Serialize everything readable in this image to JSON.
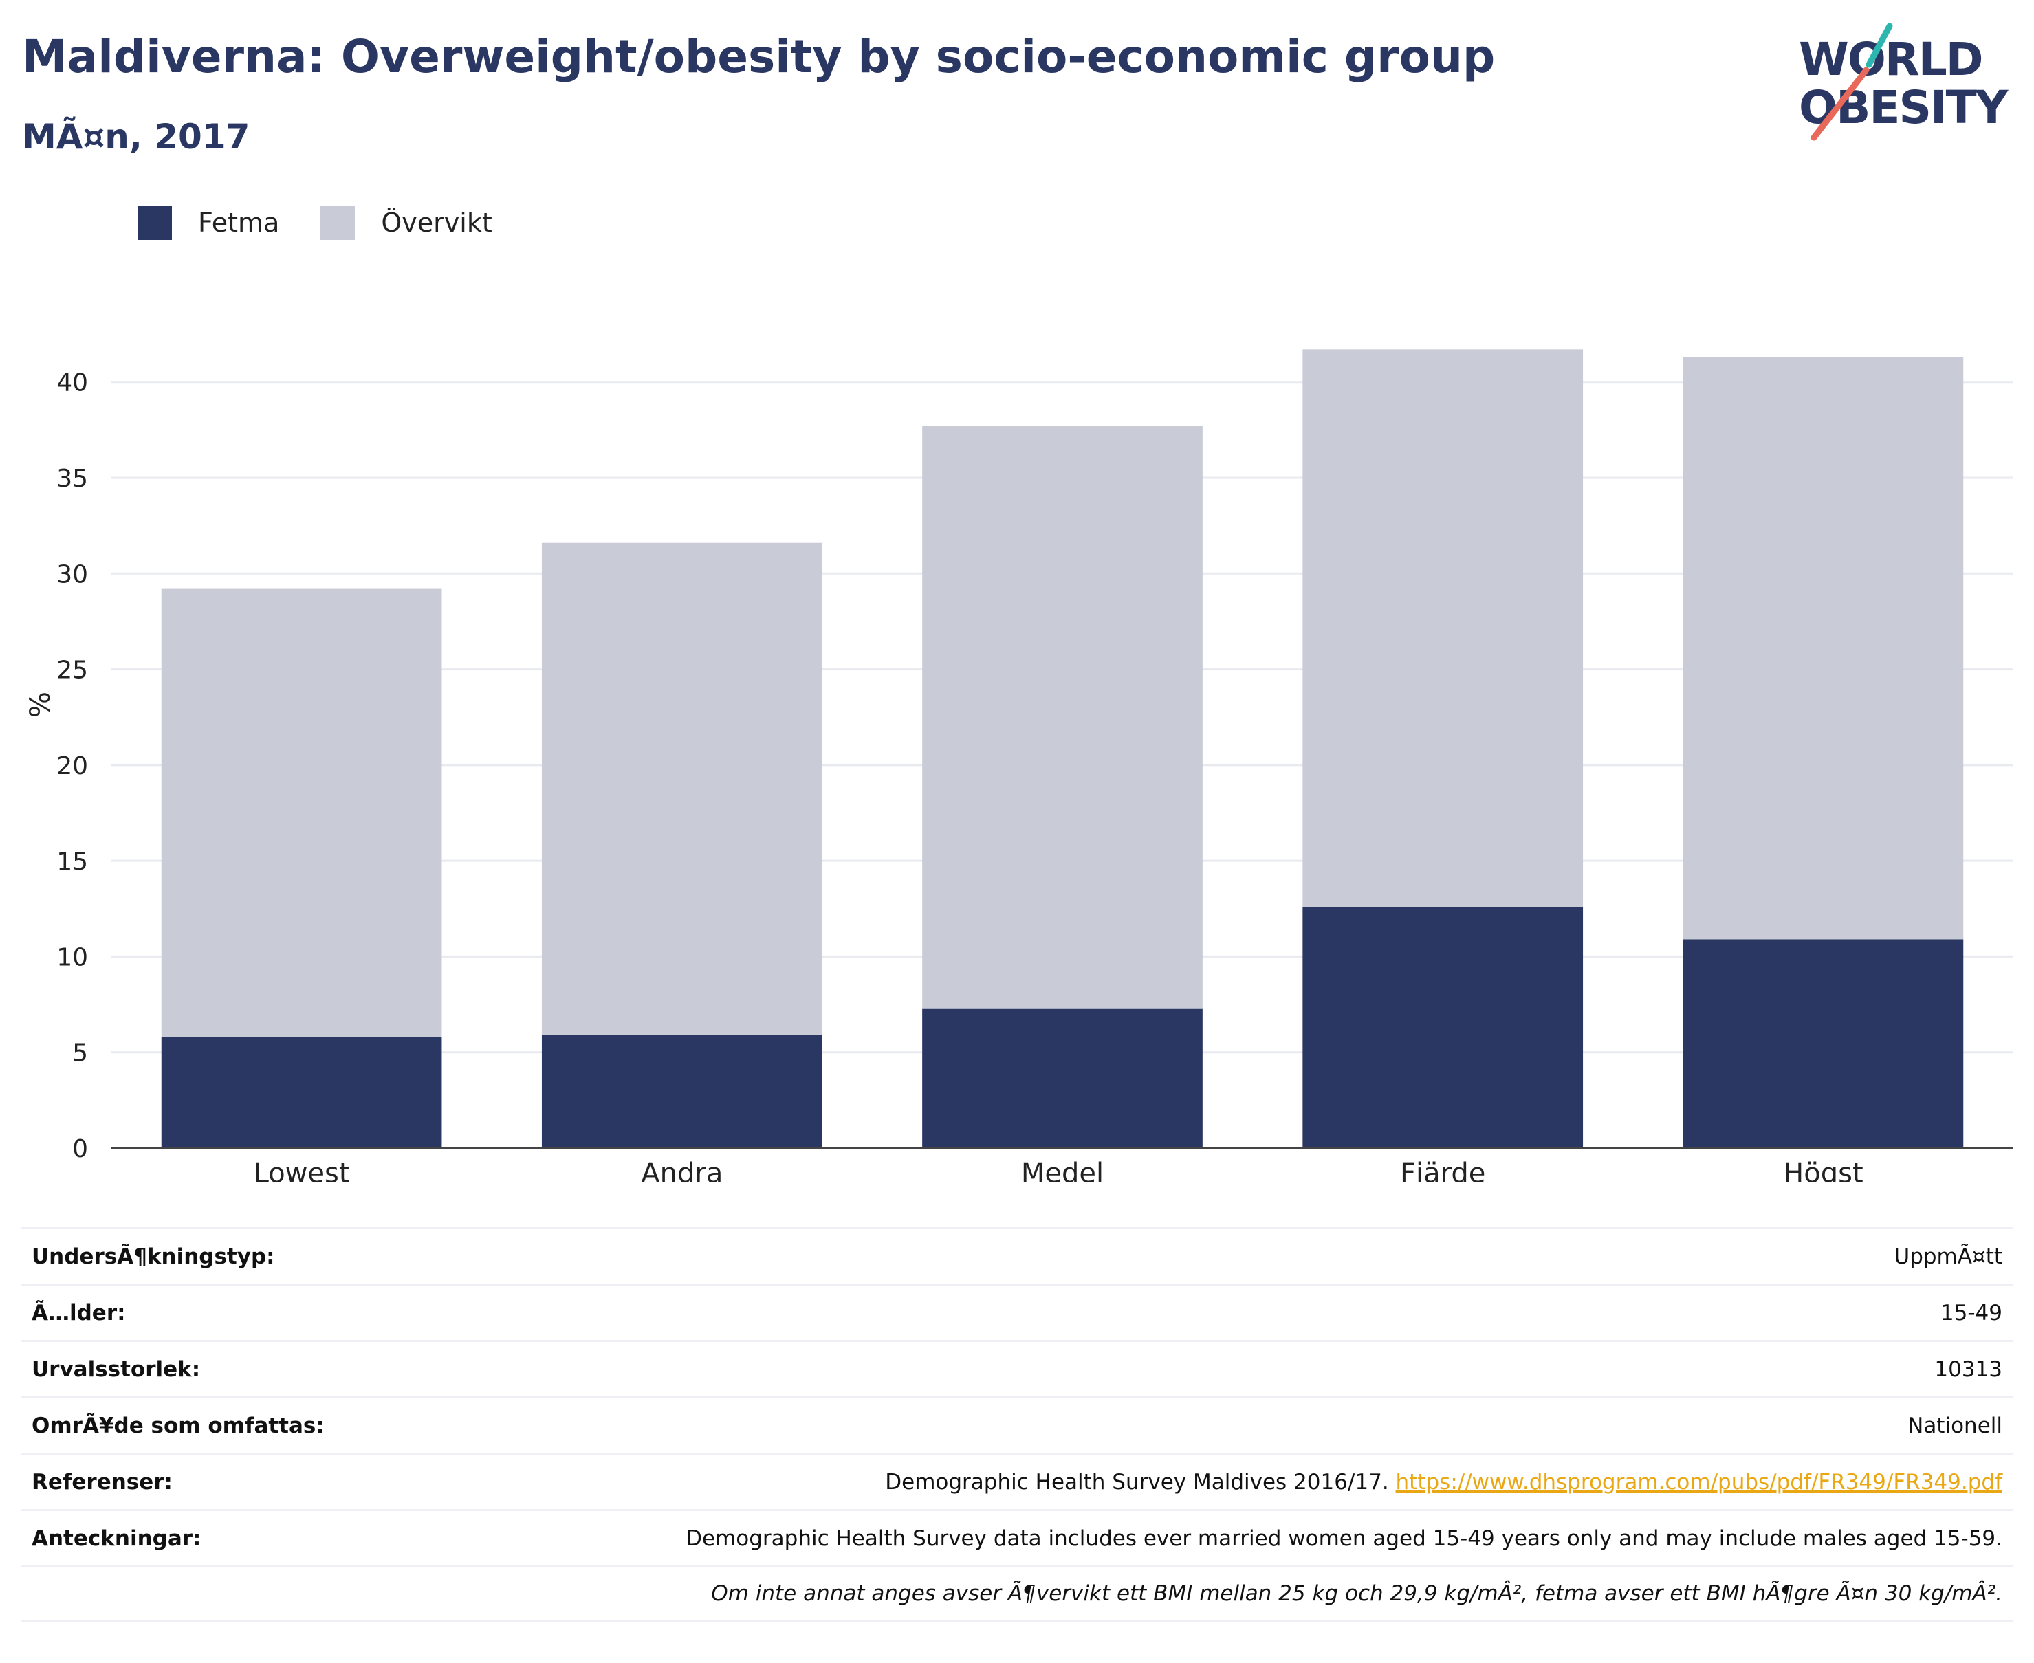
{
  "header": {
    "title": "Maldiverna: Overweight/obesity by socio-economic group",
    "subtitle": "MÃ¤n, 2017"
  },
  "logo": {
    "line1": "WORLD",
    "line2": "OBESITY"
  },
  "colors": {
    "fetma": "#2a3763",
    "overvikt": "#c9cbd7",
    "accent_teal": "#2bb6b0",
    "accent_coral": "#e8695a"
  },
  "legend": [
    {
      "label": "Fetma",
      "color": "#2a3763"
    },
    {
      "label": "Övervikt",
      "color": "#c9cbd7"
    }
  ],
  "chart_data": {
    "type": "bar",
    "stacked": true,
    "categories": [
      "Lowest",
      "Andra",
      "Medel",
      "Fjärde",
      "Högst"
    ],
    "series": [
      {
        "name": "Fetma",
        "values": [
          5.8,
          5.9,
          7.3,
          12.6,
          10.9
        ]
      },
      {
        "name": "Övervikt",
        "values": [
          23.4,
          25.7,
          30.4,
          29.1,
          30.4
        ]
      }
    ],
    "ylabel": "%",
    "ylim": [
      0,
      42
    ],
    "yticks": [
      0,
      5,
      10,
      15,
      20,
      25,
      30,
      35,
      40
    ],
    "grid": true,
    "legend_position": "top-left"
  },
  "meta": {
    "rows": [
      {
        "label": "UndersÃ¶kningstyp:",
        "value": "UppmÃ¤tt"
      },
      {
        "label": "Ã…lder:",
        "value": "15-49"
      },
      {
        "label": "Urvalsstorlek:",
        "value": "10313"
      },
      {
        "label": "OmrÃ¥de som omfattas:",
        "value": "Nationell"
      }
    ],
    "references": {
      "label": "Referenser:",
      "text": "Demographic Health Survey Maldives 2016/17. ",
      "link": "https://www.dhsprogram.com/pubs/pdf/FR349/FR349.pdf"
    },
    "notes": {
      "label": "Anteckningar:",
      "text": "Demographic Health Survey data includes ever married women aged 15-49 years only and may include males aged 15-59.",
      "footnote": "Om inte annat anges avser Ã¶vervikt ett BMI mellan 25 kg och 29,9 kg/mÂ², fetma avser ett BMI hÃ¶gre Ã¤n 30 kg/mÂ²."
    }
  }
}
